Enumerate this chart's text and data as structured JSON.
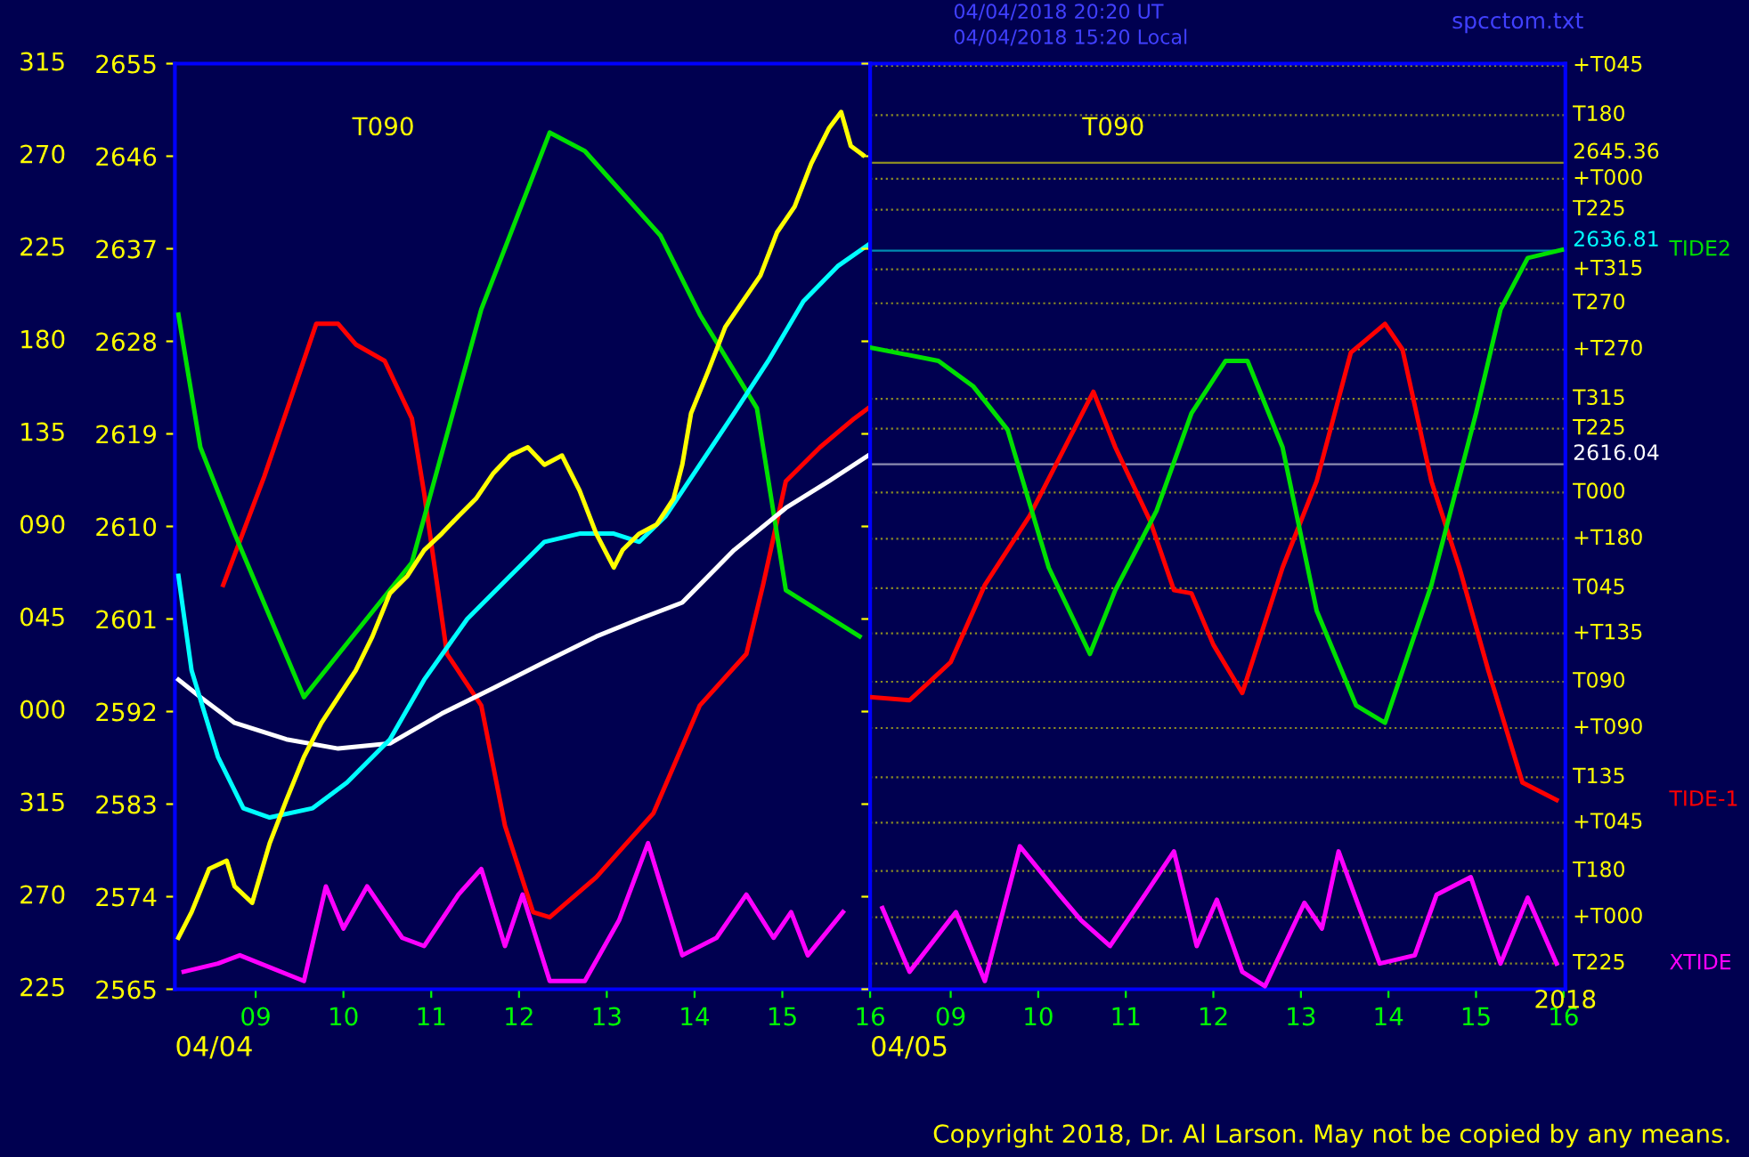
{
  "chart_data": [
    {
      "type": "line",
      "xlabel": "04/04",
      "xlim": [
        8.08,
        16.0
      ],
      "ylim": [
        2565,
        2655
      ],
      "xticks": [
        {
          "value": 9,
          "label": "09"
        },
        10,
        11,
        12,
        13,
        14,
        15,
        16
      ],
      "yticks": [
        2565,
        2574,
        2583,
        2592,
        2601,
        2610,
        2619,
        2628,
        2637,
        2646,
        2655
      ],
      "grid": false,
      "legend": false,
      "marker": "none",
      "series": [
        {
          "color": "#ff0000",
          "x": [
            8.63,
            9.1,
            9.69,
            9.94,
            10.14,
            10.47,
            10.78,
            10.92,
            11.18,
            11.57,
            11.84,
            12.16,
            12.35,
            12.88,
            13.53,
            14.06,
            14.59,
            14.78,
            15.04,
            15.43,
            15.82,
            15.98
          ],
          "values": [
            2604.3,
            2614.9,
            2629.7,
            2629.7,
            2627.7,
            2626.1,
            2620.5,
            2613.2,
            2597.6,
            2592.6,
            2580.9,
            2572.5,
            2572.0,
            2575.9,
            2582.1,
            2592.6,
            2597.6,
            2604.3,
            2614.4,
            2617.7,
            2620.5,
            2621.5
          ]
        },
        {
          "color": "#00e000",
          "x": [
            8.12,
            8.37,
            8.76,
            9.55,
            10.78,
            11.57,
            12.35,
            12.75,
            13.61,
            14.06,
            14.71,
            15.04,
            15.88
          ],
          "values": [
            2630.6,
            2617.7,
            2609.3,
            2593.4,
            2606.5,
            2631.1,
            2648.3,
            2646.5,
            2638.3,
            2630.6,
            2621.5,
            2603.8,
            2599.3
          ]
        },
        {
          "color": "#ff00ff",
          "x": [
            8.18,
            8.57,
            8.82,
            9.55,
            9.8,
            10.0,
            10.27,
            10.67,
            10.92,
            11.31,
            11.57,
            11.84,
            12.04,
            12.35,
            12.75,
            13.14,
            13.47,
            13.86,
            14.25,
            14.59,
            14.9,
            15.1,
            15.29,
            15.69
          ],
          "values": [
            2566.7,
            2567.5,
            2568.3,
            2565.8,
            2575.0,
            2570.9,
            2575.0,
            2570.0,
            2569.2,
            2574.2,
            2576.7,
            2569.2,
            2574.2,
            2565.8,
            2565.8,
            2571.7,
            2579.2,
            2568.3,
            2570.0,
            2574.2,
            2570.0,
            2572.5,
            2568.3,
            2572.5
          ]
        },
        {
          "color": "#ffffff",
          "x": [
            8.12,
            8.37,
            8.76,
            9.35,
            9.94,
            10.53,
            11.12,
            11.71,
            12.29,
            12.88,
            13.37,
            13.86,
            14.45,
            15.04,
            15.53,
            15.98
          ],
          "values": [
            2595.1,
            2593.4,
            2590.9,
            2589.3,
            2588.4,
            2588.9,
            2591.8,
            2594.3,
            2596.8,
            2599.3,
            2601.0,
            2602.6,
            2607.7,
            2611.8,
            2614.4,
            2616.9
          ]
        },
        {
          "color": "#00ffff",
          "x": [
            8.12,
            8.27,
            8.57,
            8.86,
            9.16,
            9.65,
            10.04,
            10.53,
            10.92,
            11.41,
            11.9,
            12.29,
            12.69,
            13.08,
            13.37,
            13.67,
            14.06,
            14.45,
            14.84,
            15.24,
            15.63,
            15.98
          ],
          "values": [
            2605.2,
            2596.0,
            2587.6,
            2582.6,
            2581.7,
            2582.6,
            2585.1,
            2589.3,
            2595.1,
            2601.0,
            2605.2,
            2608.5,
            2609.3,
            2609.3,
            2608.5,
            2611.0,
            2616.0,
            2621.0,
            2626.1,
            2631.9,
            2635.3,
            2637.4
          ]
        },
        {
          "color": "#ffff00",
          "x": [
            8.12,
            8.27,
            8.47,
            8.67,
            8.76,
            8.96,
            9.16,
            9.35,
            9.55,
            9.75,
            9.94,
            10.14,
            10.33,
            10.53,
            10.73,
            10.92,
            11.12,
            11.31,
            11.51,
            11.71,
            11.9,
            12.1,
            12.29,
            12.49,
            12.69,
            12.88,
            13.08,
            13.18,
            13.37,
            13.57,
            13.76,
            13.86,
            13.96,
            14.16,
            14.35,
            14.55,
            14.75,
            14.94,
            15.14,
            15.33,
            15.53,
            15.67,
            15.78,
            15.92
          ],
          "values": [
            2570.0,
            2572.5,
            2576.7,
            2577.5,
            2575.0,
            2573.4,
            2579.2,
            2583.4,
            2587.6,
            2590.9,
            2593.4,
            2596.0,
            2599.3,
            2603.5,
            2605.2,
            2607.7,
            2609.3,
            2611.0,
            2612.7,
            2615.2,
            2616.9,
            2617.7,
            2616.0,
            2616.9,
            2613.5,
            2609.3,
            2606.0,
            2607.7,
            2609.3,
            2610.2,
            2612.7,
            2616.0,
            2621.0,
            2625.2,
            2629.4,
            2631.9,
            2634.4,
            2638.6,
            2641.1,
            2645.3,
            2648.7,
            2650.3,
            2647.0,
            2646.1
          ]
        }
      ],
      "annotations": [
        "T090",
        "225",
        "270",
        "315",
        "000",
        "045",
        "090",
        "135",
        "180",
        "225",
        "270",
        "315"
      ]
    },
    {
      "type": "line",
      "xlabel": "04/05",
      "tick_labels": "x",
      "xlim": [
        8.08,
        16.02
      ],
      "ylim": [
        2565,
        2655
      ],
      "xticks": [
        {
          "value": 9,
          "label": "09"
        },
        10,
        11,
        12,
        13,
        14,
        15,
        16
      ],
      "yticks": [
        2565,
        2574,
        2583,
        2592,
        2601,
        2610,
        2619,
        2628,
        2637,
        2646,
        2655
      ],
      "grid": false,
      "legend": false,
      "marker": "none",
      "series": [
        {
          "color": "#ff0000",
          "name": "TIDE-1",
          "x": [
            8.08,
            8.53,
            9.0,
            9.39,
            9.9,
            10.63,
            10.88,
            11.28,
            11.55,
            11.75,
            12.0,
            12.33,
            12.79,
            13.18,
            13.57,
            13.96,
            14.16,
            14.49,
            14.81,
            15.14,
            15.53,
            15.92
          ],
          "values": [
            2593.4,
            2593.1,
            2596.8,
            2604.3,
            2611.0,
            2623.1,
            2617.7,
            2610.5,
            2603.8,
            2603.5,
            2598.5,
            2593.8,
            2606.0,
            2614.4,
            2626.9,
            2629.7,
            2627.2,
            2614.4,
            2606.0,
            2596.0,
            2585.1,
            2583.4
          ]
        },
        {
          "color": "#00e000",
          "name": "TIDE2",
          "x": [
            8.08,
            8.86,
            9.26,
            9.65,
            10.12,
            10.59,
            10.88,
            11.35,
            11.75,
            12.14,
            12.39,
            12.79,
            13.18,
            13.63,
            13.96,
            14.49,
            15.0,
            15.28,
            15.59,
            15.98
          ],
          "values": [
            2627.4,
            2626.1,
            2623.6,
            2619.4,
            2606.0,
            2597.6,
            2603.8,
            2611.5,
            2621.0,
            2626.1,
            2626.1,
            2617.7,
            2601.8,
            2592.6,
            2590.9,
            2604.3,
            2621.0,
            2631.1,
            2636.1,
            2636.9
          ]
        },
        {
          "color": "#ff00ff",
          "name": "XTIDE",
          "x": [
            8.22,
            8.53,
            9.06,
            9.39,
            9.79,
            10.24,
            10.49,
            10.82,
            11.22,
            11.55,
            11.81,
            12.04,
            12.33,
            12.59,
            13.04,
            13.24,
            13.43,
            13.9,
            14.3,
            14.55,
            14.94,
            15.28,
            15.59,
            15.92
          ],
          "values": [
            2572.9,
            2566.7,
            2572.5,
            2565.8,
            2578.9,
            2574.2,
            2571.7,
            2569.2,
            2574.2,
            2578.4,
            2569.2,
            2573.7,
            2566.7,
            2565.3,
            2573.4,
            2570.9,
            2578.4,
            2567.5,
            2568.3,
            2574.2,
            2575.9,
            2567.5,
            2573.9,
            2567.5
          ]
        }
      ],
      "ref_lines": [
        {
          "axis": "y",
          "value": 2654.8,
          "label": "+T045",
          "color": "#ffff00",
          "line_style": "dotted"
        },
        {
          "axis": "y",
          "value": 2650.0,
          "label": "T180",
          "color": "#ffff00",
          "line_style": "dotted"
        },
        {
          "axis": "y",
          "value": 2645.36,
          "label": "2645.36",
          "color": "#ffff00",
          "line_style": "solid"
        },
        {
          "axis": "y",
          "value": 2643.8,
          "label": "+T000",
          "color": "#ffff00",
          "line_style": "dotted"
        },
        {
          "axis": "y",
          "value": 2640.8,
          "label": "T225",
          "color": "#ffff00",
          "line_style": "dotted"
        },
        {
          "axis": "y",
          "value": 2636.81,
          "label": "2636.81",
          "color": "#00ffff",
          "line_style": "solid"
        },
        {
          "axis": "y",
          "value": 2635.0,
          "label": "+T315",
          "color": "#ffff00",
          "line_style": "dotted"
        },
        {
          "axis": "y",
          "value": 2631.7,
          "label": "T270",
          "color": "#ffff00",
          "line_style": "dotted"
        },
        {
          "axis": "y",
          "value": 2627.2,
          "label": "+T270",
          "color": "#ffff00",
          "line_style": "dotted"
        },
        {
          "axis": "y",
          "value": 2622.4,
          "label": "T315",
          "color": "#ffff00",
          "line_style": "dotted"
        },
        {
          "axis": "y",
          "value": 2619.5,
          "label": "T225",
          "color": "#ffff00",
          "line_style": "dotted"
        },
        {
          "axis": "y",
          "value": 2616.04,
          "label": "2616.04",
          "color": "#ffffff",
          "line_style": "solid"
        },
        {
          "axis": "y",
          "value": 2613.3,
          "label": "T000",
          "color": "#ffff00",
          "line_style": "dotted"
        },
        {
          "axis": "y",
          "value": 2608.8,
          "label": "+T180",
          "color": "#ffff00",
          "line_style": "dotted"
        },
        {
          "axis": "y",
          "value": 2604.0,
          "label": "T045",
          "color": "#ffff00",
          "line_style": "dotted"
        },
        {
          "axis": "y",
          "value": 2599.6,
          "label": "+T135",
          "color": "#ffff00",
          "line_style": "dotted"
        },
        {
          "axis": "y",
          "value": 2594.9,
          "label": "T090",
          "color": "#ffff00",
          "line_style": "dotted"
        },
        {
          "axis": "y",
          "value": 2590.4,
          "label": "+T090",
          "color": "#ffff00",
          "line_style": "dotted"
        },
        {
          "axis": "y",
          "value": 2585.6,
          "label": "T135",
          "color": "#ffff00",
          "line_style": "dotted"
        },
        {
          "axis": "y",
          "value": 2581.2,
          "label": "+T045",
          "color": "#ffff00",
          "line_style": "dotted"
        },
        {
          "axis": "y",
          "value": 2576.5,
          "label": "T180",
          "color": "#ffff00",
          "line_style": "dotted"
        },
        {
          "axis": "y",
          "value": 2572.0,
          "label": "+T000",
          "color": "#ffff00",
          "line_style": "dotted"
        },
        {
          "axis": "y",
          "value": 2567.5,
          "label": "T225",
          "color": "#ffff00",
          "line_style": "dotted"
        }
      ],
      "annotations": [
        "T090",
        "2018",
        "04/04/2018 20:20 UT",
        "04/04/2018 15:20 Local",
        "spcctom.txt",
        "Copyright 2018, Dr. Al Larson. May not be copied by any means."
      ]
    }
  ]
}
